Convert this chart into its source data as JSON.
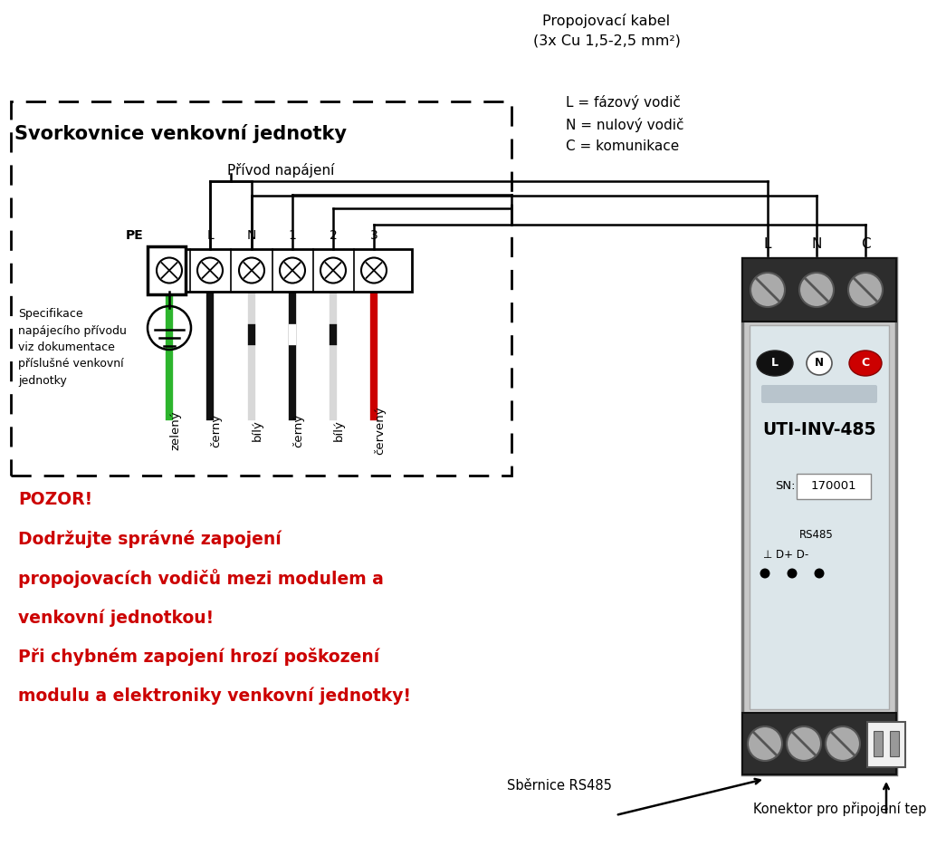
{
  "bg_color": "#ffffff",
  "cable_label": "Propojovací kabel\n(3x Cu 1,5-2,5 mm²)",
  "legend_text": "L = fázový vodič\nN = nulový vodič\nC = komunikace",
  "box_title": "Svorkovnice venkovní jednotky",
  "power_label": "Přívod napájení",
  "pe_label": "PE",
  "spec_text": "Specifikace\nnapájecího přívodu\nviz dokumentace\npříslušné venkovní\njednotky",
  "terminal_labels_above": [
    "L",
    "N",
    "1",
    "2",
    "3"
  ],
  "wire_labels": [
    "zelený",
    "černý",
    "bílý",
    "černý",
    "bílý",
    "červený"
  ],
  "wire_colors": [
    "#2db52d",
    "#111111",
    "#d8d8d8",
    "#111111",
    "#d8d8d8",
    "#cc0000"
  ],
  "wire_stripe_colors": [
    null,
    null,
    null,
    "#ffffff",
    null,
    null
  ],
  "warning_lines": [
    "POZOR!",
    "Dodržujte správné zapojení",
    "propojovacích vodičů mezi modulem a",
    "venkovní jednotkou!",
    "Při chybném zapojení hrozí poškození",
    "modulu a elektroniky venkovní jednotky!"
  ],
  "device_label": "UTI-INV-485",
  "sn_label": "SN:",
  "sn_value": "170001",
  "top_conn_labels": [
    "L",
    "N",
    "C"
  ],
  "bottom_label1": "Sběrnice RS485",
  "bottom_label2": "Konektor pro připojení teplotního senzoru"
}
